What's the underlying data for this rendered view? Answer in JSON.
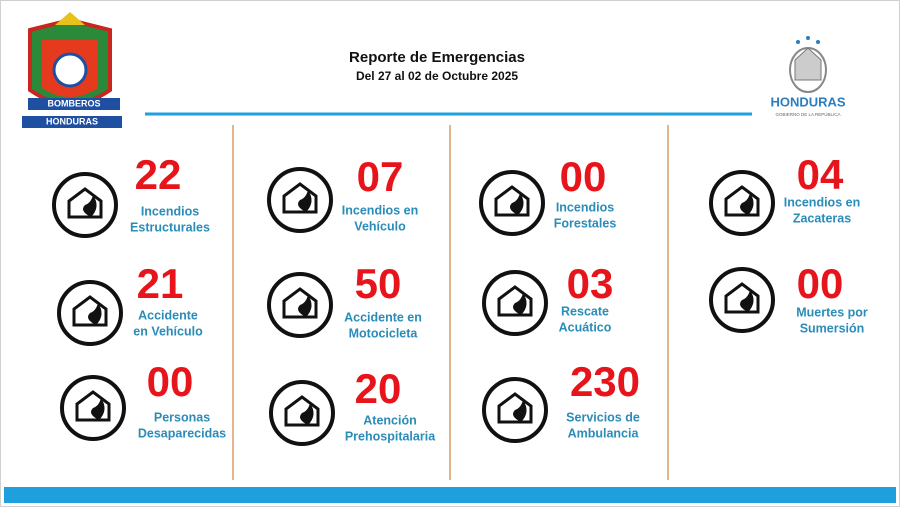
{
  "header": {
    "title": "Reporte de Emergencias",
    "subtitle": "Del 27 al 02 de Octubre 2025"
  },
  "left_logo": {
    "line1": "BOMBEROS",
    "line2": "HONDURAS"
  },
  "right_logo": {
    "name": "HONDURAS",
    "tagline": "GOBIERNO DE LA REPÚBLICA"
  },
  "items": [
    {
      "number": "22",
      "label": [
        "Incendios",
        "Estructurales"
      ]
    },
    {
      "number": "21",
      "label": [
        "Accidente",
        "en Vehículo"
      ]
    },
    {
      "number": "00",
      "label": [
        "Personas",
        "Desaparecidas"
      ]
    },
    {
      "number": "07",
      "label": [
        "Incendios en",
        "Vehículo"
      ]
    },
    {
      "number": "50",
      "label": [
        "Accidente en",
        "Motocicleta"
      ]
    },
    {
      "number": "20",
      "label": [
        "Atención",
        "Prehospitalaria"
      ]
    },
    {
      "number": "00",
      "label": [
        "Incendios",
        "Forestales"
      ]
    },
    {
      "number": "03",
      "label": [
        "Rescate",
        "Acuático"
      ]
    },
    {
      "number": "230",
      "label": [
        "Servicios de",
        "Ambulancia"
      ]
    },
    {
      "number": "04",
      "label": [
        "Incendios en",
        "Zacateras"
      ]
    },
    {
      "number": "00",
      "label": [
        "Muertes por",
        "Sumersión"
      ]
    }
  ]
}
